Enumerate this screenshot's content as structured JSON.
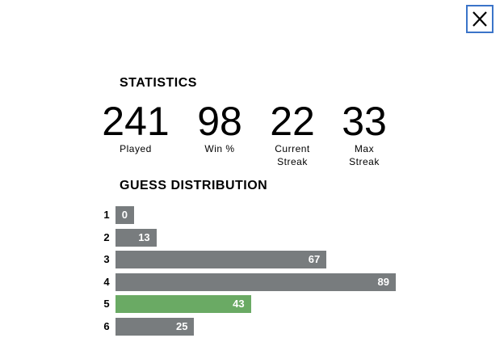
{
  "statistics": {
    "title": "STATISTICS",
    "items": [
      {
        "value": "241",
        "label": "Played"
      },
      {
        "value": "98",
        "label": "Win %"
      },
      {
        "value": "22",
        "label": "Current Streak"
      },
      {
        "value": "33",
        "label": "Max Streak"
      }
    ]
  },
  "guess_distribution": {
    "title": "GUESS DISTRIBUTION",
    "categories": [
      "1",
      "2",
      "3",
      "4",
      "5",
      "6"
    ],
    "values": [
      0,
      13,
      67,
      89,
      43,
      25
    ],
    "colors": [
      "#787c7e",
      "#787c7e",
      "#787c7e",
      "#787c7e",
      "#6aaa64",
      "#787c7e"
    ]
  }
}
